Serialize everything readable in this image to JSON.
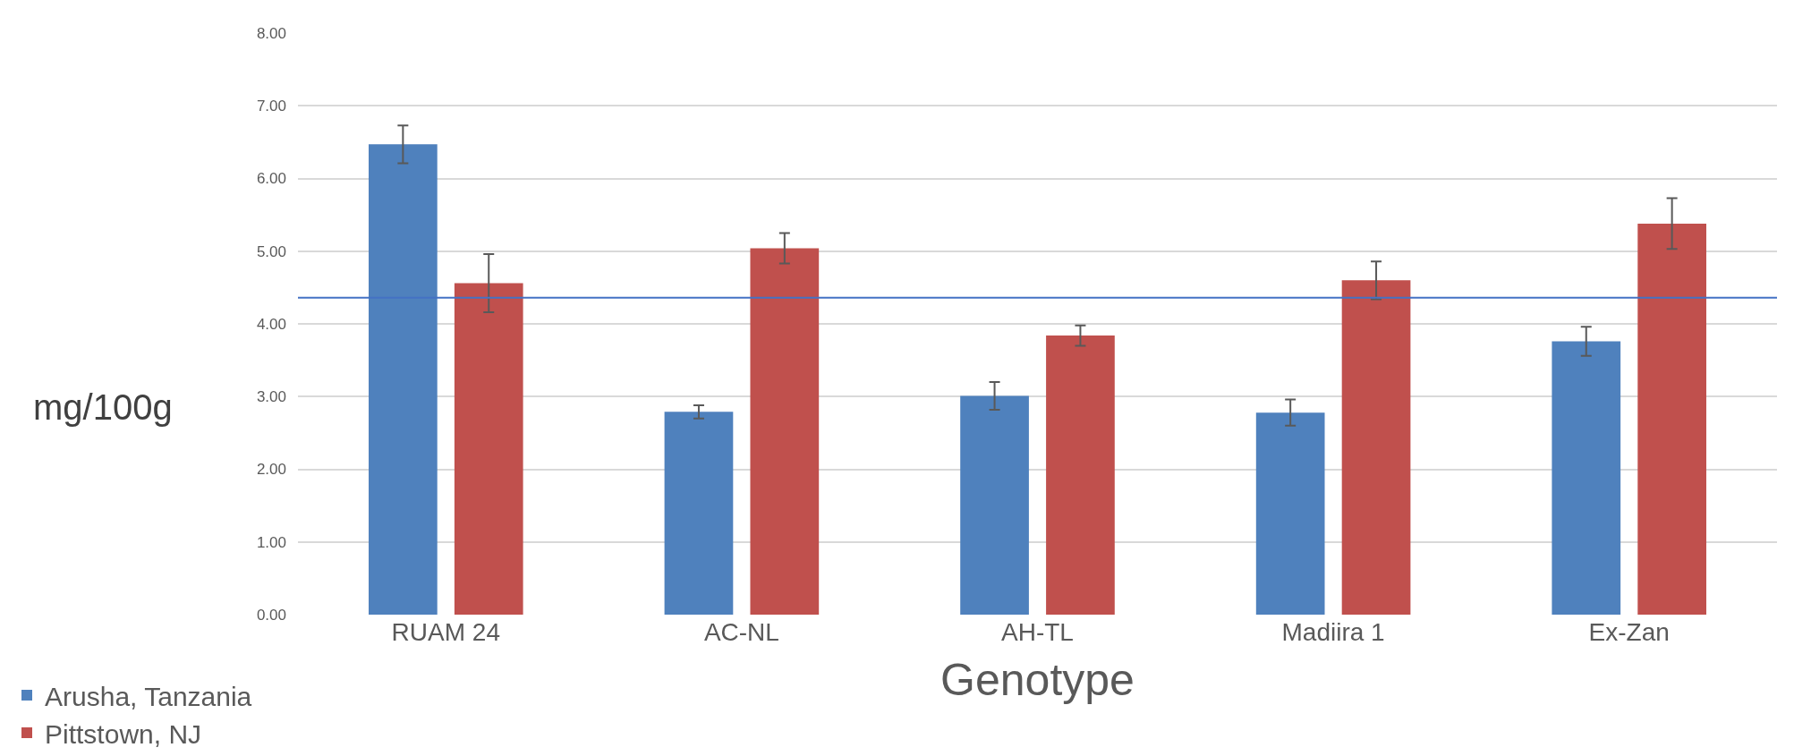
{
  "chart_data": {
    "type": "bar",
    "xlabel": "Genotype",
    "ylabel": "mg/100g",
    "categories": [
      "RUAM 24",
      "AC-NL",
      "AH-TL",
      "Madiira 1",
      "Ex-Zan"
    ],
    "series": [
      {
        "name": "Arusha, Tanzania",
        "color": "#4f81bd",
        "values": [
          6.47,
          2.79,
          3.01,
          2.78,
          3.76
        ],
        "errors": [
          0.26,
          0.09,
          0.19,
          0.18,
          0.2
        ]
      },
      {
        "name": "Pittstown, NJ",
        "color": "#c0504d",
        "values": [
          4.56,
          5.04,
          3.84,
          4.6,
          5.38
        ],
        "errors": [
          0.4,
          0.21,
          0.14,
          0.26,
          0.35
        ]
      }
    ],
    "ylim": [
      0,
      8
    ],
    "yticks": [
      {
        "value": 0,
        "label": "0.00"
      },
      {
        "value": 1,
        "label": "1.00"
      },
      {
        "value": 2,
        "label": "2.00"
      },
      {
        "value": 3,
        "label": "3.00"
      },
      {
        "value": 4,
        "label": "4.00"
      },
      {
        "value": 5,
        "label": "5.00"
      },
      {
        "value": 6,
        "label": "6.00"
      },
      {
        "value": 7,
        "label": "7.00"
      },
      {
        "value": 8,
        "label": "8.00"
      }
    ],
    "ref_lines": [
      {
        "axis": "y",
        "value": 4.36,
        "color": "#4472c4"
      }
    ],
    "grid": "y",
    "legend": "bottom left"
  }
}
